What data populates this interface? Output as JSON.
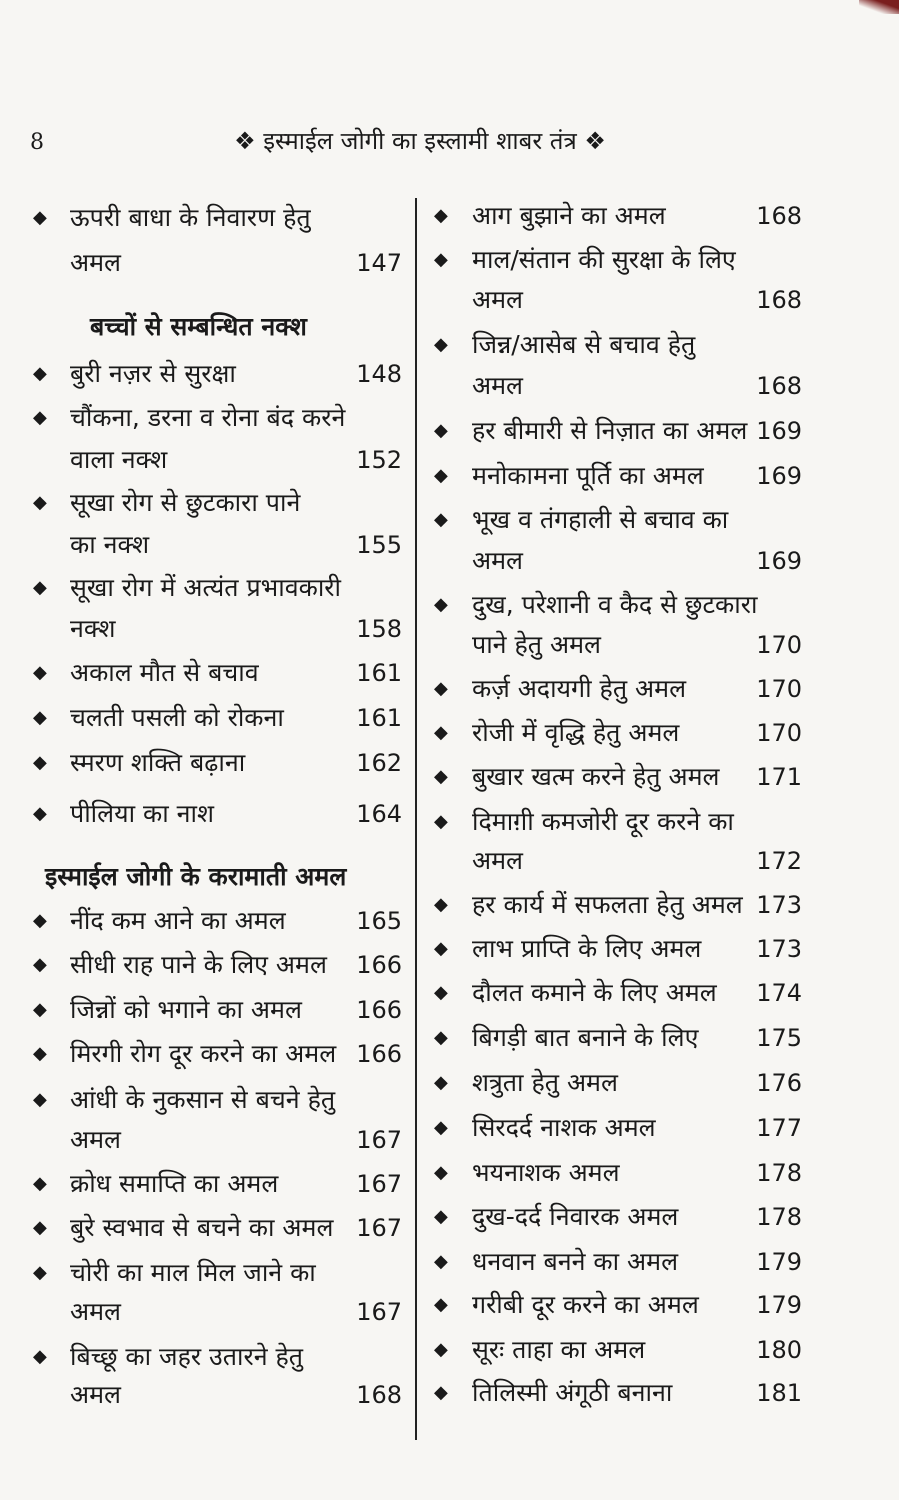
{
  "page_number": "8",
  "running_header": "❖ इस्माईल जोगी का इस्लामी शाबर तंत्र ❖",
  "left_column": [
    {
      "type": "item",
      "lines": [
        "ऊपरी बाधा के निवारण हेतु",
        "अमल"
      ],
      "page": "147"
    },
    {
      "type": "heading",
      "text": "बच्चों से सम्बन्धित नक्श"
    },
    {
      "type": "item",
      "lines": [
        "बुरी नज़र से सुरक्षा"
      ],
      "page": "148"
    },
    {
      "type": "item",
      "lines": [
        "चौंकना, डरना व रोना बंद करने",
        "वाला नक्श"
      ],
      "page": "152"
    },
    {
      "type": "item",
      "lines": [
        "सूखा रोग से छुटकारा पाने",
        "का नक्श"
      ],
      "page": "155"
    },
    {
      "type": "item",
      "lines": [
        "सूखा रोग में अत्यंत प्रभावकारी",
        "नक्श"
      ],
      "page": "158"
    },
    {
      "type": "item",
      "lines": [
        "अकाल मौत से बचाव"
      ],
      "page": "161"
    },
    {
      "type": "item",
      "lines": [
        "चलती पसली को रोकना"
      ],
      "page": "161"
    },
    {
      "type": "item",
      "lines": [
        "स्मरण शक्ति बढ़ाना"
      ],
      "page": "162"
    },
    {
      "type": "item",
      "lines": [
        "पीलिया का नाश"
      ],
      "page": "164"
    },
    {
      "type": "heading",
      "text": "इस्माईल जोगी के करामाती अमल"
    },
    {
      "type": "item",
      "lines": [
        "नींद कम आने का अमल"
      ],
      "page": "165"
    },
    {
      "type": "item",
      "lines": [
        "सीधी राह पाने के लिए अमल"
      ],
      "page": "166"
    },
    {
      "type": "item",
      "lines": [
        "जिन्नों को भगाने का अमल"
      ],
      "page": "166"
    },
    {
      "type": "item",
      "lines": [
        "मिरगी रोग दूर करने का अमल"
      ],
      "page": "166"
    },
    {
      "type": "item",
      "lines": [
        "आंधी के नुकसान से बचने हेतु",
        "अमल"
      ],
      "page": "167"
    },
    {
      "type": "item",
      "lines": [
        "क्रोध समाप्ति का अमल"
      ],
      "page": "167"
    },
    {
      "type": "item",
      "lines": [
        "बुरे स्वभाव से बचने का अमल"
      ],
      "page": "167"
    },
    {
      "type": "item",
      "lines": [
        "चोरी का माल मिल जाने का",
        "अमल"
      ],
      "page": "167"
    },
    {
      "type": "item",
      "lines": [
        "बिच्छू का जहर उतारने हेतु",
        "अमल"
      ],
      "page": "168"
    }
  ],
  "right_column": [
    {
      "type": "item",
      "lines": [
        "आग बुझाने का अमल"
      ],
      "page": "168"
    },
    {
      "type": "item",
      "lines": [
        "माल/संतान की सुरक्षा के लिए",
        "अमल"
      ],
      "page": "168"
    },
    {
      "type": "item",
      "lines": [
        "जिन्न/आसेब से बचाव हेतु",
        "अमल"
      ],
      "page": "168"
    },
    {
      "type": "item",
      "lines": [
        "हर बीमारी से निज़ात का अमल"
      ],
      "page": "169"
    },
    {
      "type": "item",
      "lines": [
        "मनोकामना पूर्ति का अमल"
      ],
      "page": "169"
    },
    {
      "type": "item",
      "lines": [
        "भूख व तंगहाली से बचाव का",
        "अमल"
      ],
      "page": "169"
    },
    {
      "type": "item",
      "lines": [
        "दुख, परेशानी व कैद से छुटकारा",
        "पाने हेतु अमल"
      ],
      "page": "170"
    },
    {
      "type": "item",
      "lines": [
        "कर्ज़ अदायगी हेतु अमल"
      ],
      "page": "170"
    },
    {
      "type": "item",
      "lines": [
        "रोजी में वृद्धि हेतु अमल"
      ],
      "page": "170"
    },
    {
      "type": "item",
      "lines": [
        "बुखार खत्म करने हेतु अमल"
      ],
      "page": "171"
    },
    {
      "type": "item",
      "lines": [
        "दिमाग़ी कमजोरी दूर करने का",
        "अमल"
      ],
      "page": "172"
    },
    {
      "type": "item",
      "lines": [
        "हर कार्य में सफलता हेतु अमल"
      ],
      "page": "173"
    },
    {
      "type": "item",
      "lines": [
        "लाभ प्राप्ति के लिए अमल"
      ],
      "page": "173"
    },
    {
      "type": "item",
      "lines": [
        "दौलत कमाने के लिए अमल"
      ],
      "page": "174"
    },
    {
      "type": "item",
      "lines": [
        "बिगड़ी बात बनाने के लिए"
      ],
      "page": "175"
    },
    {
      "type": "item",
      "lines": [
        "शत्रुता हेतु अमल"
      ],
      "page": "176"
    },
    {
      "type": "item",
      "lines": [
        "सिरदर्द नाशक अमल"
      ],
      "page": "177"
    },
    {
      "type": "item",
      "lines": [
        "भयनाशक अमल"
      ],
      "page": "178"
    },
    {
      "type": "item",
      "lines": [
        "दुख-दर्द निवारक अमल"
      ],
      "page": "178"
    },
    {
      "type": "item",
      "lines": [
        "धनवान बनने का अमल"
      ],
      "page": "179"
    },
    {
      "type": "item",
      "lines": [
        "गरीबी दूर करने का अमल"
      ],
      "page": "179"
    },
    {
      "type": "item",
      "lines": [
        "सूरः ताहा का अमल"
      ],
      "page": "180"
    },
    {
      "type": "item",
      "lines": [
        "तिलिस्मी अंगूठी बनाना"
      ],
      "page": "181"
    }
  ],
  "bullet_icon": "diamond-bullet",
  "colors": {
    "paper": "#f7f6f3",
    "ink": "#1a1a1a"
  }
}
